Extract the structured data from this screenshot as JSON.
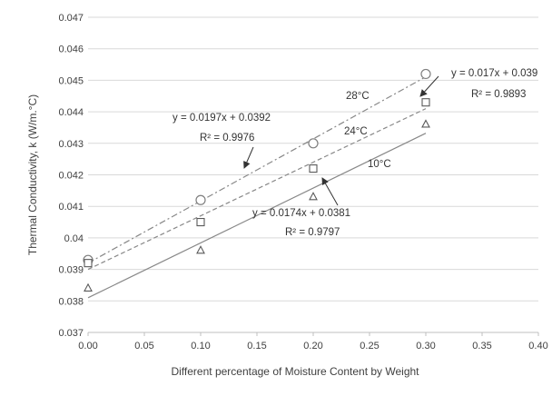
{
  "chart_data": {
    "type": "scatter",
    "xlabel": "Different percentage of Moisture Content by  Weight",
    "ylabel": "Thermal Conductivity, k (W/m.°C)",
    "xlim": [
      0,
      0.4
    ],
    "ylim": [
      0.037,
      0.047
    ],
    "x_ticks": [
      0.0,
      0.05,
      0.1,
      0.15,
      0.2,
      0.25,
      0.3,
      0.35,
      0.4
    ],
    "x_tick_labels": [
      "0.00",
      "0.05",
      "0.10",
      "0.15",
      "0.20",
      "0.25",
      "0.30",
      "0.35",
      "0.40"
    ],
    "y_ticks": [
      0.037,
      0.038,
      0.039,
      0.04,
      0.041,
      0.042,
      0.043,
      0.044,
      0.045,
      0.046,
      0.047
    ],
    "y_tick_labels": [
      "0.037",
      "0.038",
      "0.039",
      "0.04",
      "0.041",
      "0.042",
      "0.043",
      "0.044",
      "0.045",
      "0.046",
      "0.047"
    ],
    "grid": "horizontal",
    "series": [
      {
        "name": "28°C",
        "marker": "circle",
        "line_style": "dash-dot",
        "color": "#888888",
        "x": [
          0.0,
          0.1,
          0.2,
          0.3
        ],
        "y": [
          0.0393,
          0.0412,
          0.043,
          0.0452
        ],
        "trend": {
          "slope": 0.0197,
          "intercept": 0.0392,
          "equation": "y = 0.0197x + 0.0392",
          "r2": "R² = 0.9976"
        }
      },
      {
        "name": "24°C",
        "marker": "square",
        "line_style": "dashed",
        "color": "#888888",
        "x": [
          0.0,
          0.1,
          0.2,
          0.3
        ],
        "y": [
          0.0392,
          0.0405,
          0.0422,
          0.0443
        ],
        "trend": {
          "slope": 0.017,
          "intercept": 0.039,
          "equation": "y = 0.017x + 0.039",
          "r2": "R² = 0.9893"
        }
      },
      {
        "name": "10°C",
        "marker": "triangle",
        "line_style": "solid",
        "color": "#888888",
        "x": [
          0.0,
          0.1,
          0.2,
          0.3
        ],
        "y": [
          0.0384,
          0.0396,
          0.0413,
          0.0436
        ],
        "trend": {
          "slope": 0.0174,
          "intercept": 0.0381,
          "equation": "y = 0.0174x + 0.0381",
          "r2": "R² = 0.9797"
        }
      }
    ]
  }
}
